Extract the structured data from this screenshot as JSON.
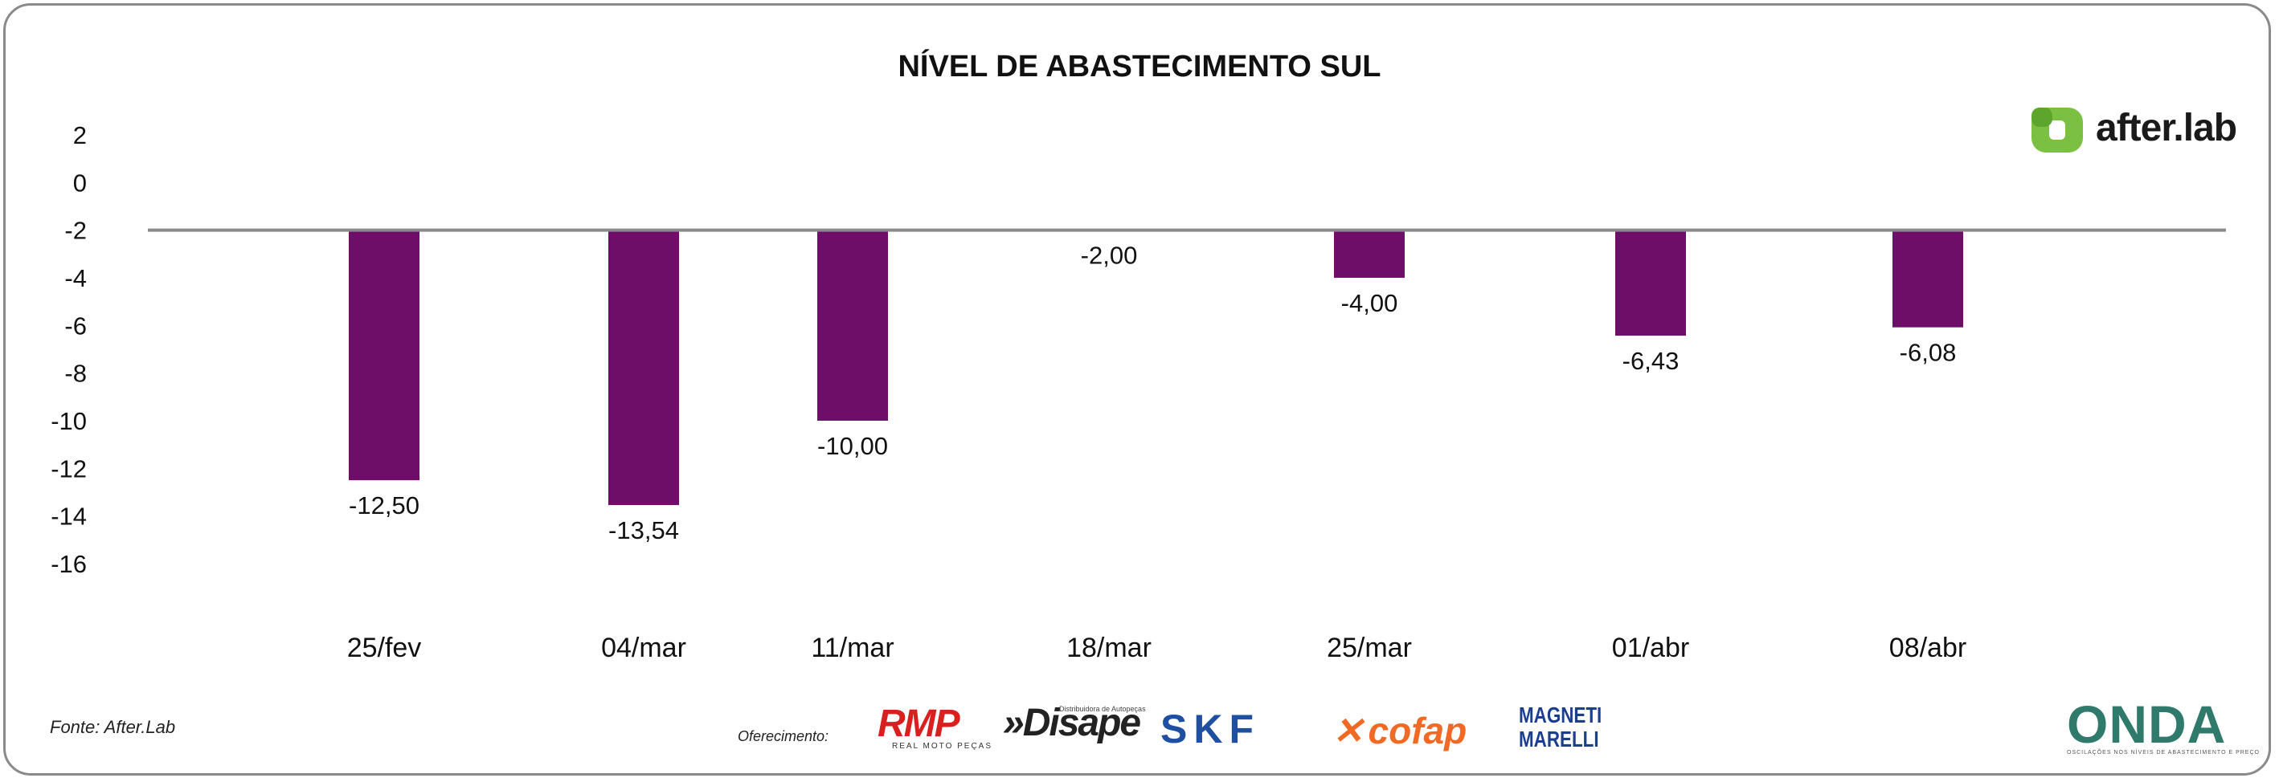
{
  "title": "NÍVEL DE ABASTECIMENTO SUL",
  "chart_data": {
    "type": "bar",
    "title": "NÍVEL DE ABASTECIMENTO SUL",
    "xlabel": "",
    "ylabel": "",
    "categories": [
      "25/fev",
      "04/mar",
      "11/mar",
      "18/mar",
      "25/mar",
      "01/abr",
      "08/abr"
    ],
    "values": [
      -12.5,
      -13.54,
      -10.0,
      -2.0,
      -4.0,
      -6.43,
      -6.08
    ],
    "value_labels": [
      "-12,50",
      "-13,54",
      "-10,00",
      "-2,00",
      "-4,00",
      "-6,43",
      "-6,08"
    ],
    "ylim": [
      -16,
      2
    ],
    "yticks": [
      2,
      0,
      -2,
      -4,
      -6,
      -8,
      -10,
      -12,
      -14,
      -16
    ],
    "grid": false,
    "legend": "none",
    "bar_color": "#6e0e68",
    "baseline_color": "#8a8a8a"
  },
  "logo": {
    "text": "after.lab",
    "icon": "after-lab-icon",
    "color": "#7bc043"
  },
  "source": "Fonte: After.Lab",
  "sponsors": {
    "label": "Oferecimento:",
    "rmp": {
      "text": "RMP",
      "tagline": "REAL MOTO PEÇAS"
    },
    "disape": {
      "text": "»Disape",
      "tagline": "Distribuidora de Autopeças"
    },
    "skf": {
      "text": "SKF"
    },
    "cofap": {
      "text": "cofap"
    },
    "marelli": {
      "line1": "MAGNETI",
      "line2": "MARELLI"
    }
  },
  "onda": {
    "text": "ONDA",
    "tagline": "OSCILAÇÕES NOS NÍVEIS DE ABASTECIMENTO E PREÇO"
  }
}
